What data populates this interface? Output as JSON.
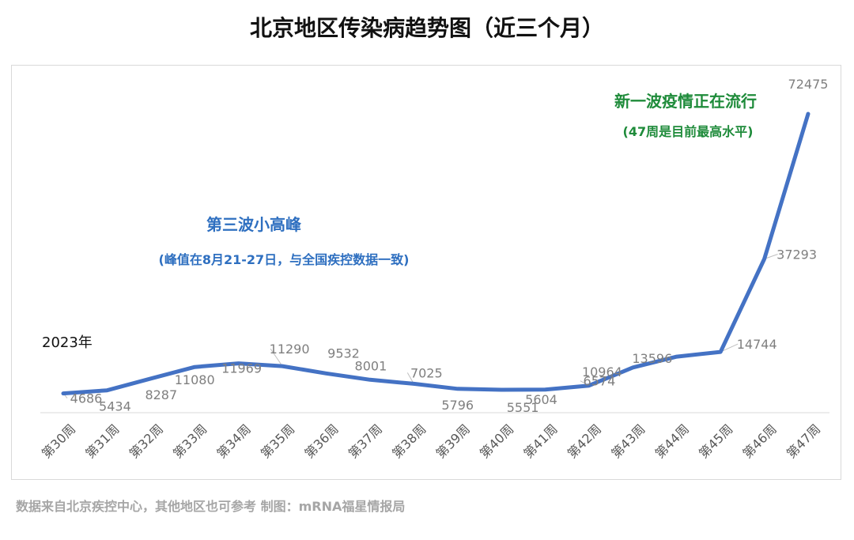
{
  "header": {
    "title": "北京地区传染病趋势图（近三个月）"
  },
  "footer": {
    "source": "数据来自北京疾控中心，其他地区也可参考  制图：mRNA福星情报局"
  },
  "colors": {
    "line": "#4472C4",
    "blue_annotation": "#2E6FC0",
    "green_annotation": "#1E8B3A",
    "label": "#7f7f7f",
    "axis": "#d9d9d9",
    "footer": "#a6a6a6"
  },
  "chart_data": {
    "type": "line",
    "title": "北京地区传染病趋势图（近三个月）",
    "xlabel": "",
    "ylabel": "",
    "year_label": "2023年",
    "categories": [
      "第30周",
      "第31周",
      "第32周",
      "第33周",
      "第34周",
      "第35周",
      "第36周",
      "第37周",
      "第38周",
      "第39周",
      "第40周",
      "第41周",
      "第42周",
      "第43周",
      "第44周",
      "第45周",
      "第46周",
      "第47周"
    ],
    "series": [
      {
        "values": [
          4686,
          5434,
          8287,
          11080,
          11969,
          11290,
          9532,
          8001,
          7025,
          5796,
          5551,
          5604,
          6574,
          10964,
          13596,
          14744,
          37293,
          72475
        ]
      }
    ],
    "ylim": [
      0,
      80000
    ],
    "grid": false,
    "legend": "none",
    "annotations": [
      {
        "title": "第三波小高峰",
        "text": "(峰值在8月21-27日，与全国疾控数据一致)",
        "color": "blue"
      },
      {
        "title": "新一波疫情正在流行",
        "text": "(47周是目前最高水平)",
        "color": "green"
      }
    ]
  }
}
